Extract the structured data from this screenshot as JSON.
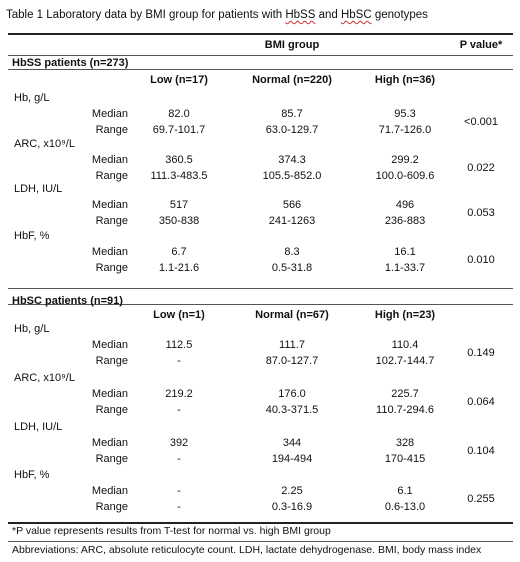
{
  "caption": {
    "prefix": "Table 1 Laboratory data by BMI group for patients with ",
    "hbss": "HbSS",
    "and": " and ",
    "hbsc": "HbSC",
    "suffix": " genotypes"
  },
  "header": {
    "bmi_group": "BMI group",
    "p_value": "P value*"
  },
  "sections": [
    {
      "title": "HbSS patients (n=273)",
      "groups": [
        "Low (n=17)",
        "Normal (n=220)",
        "High (n=36)"
      ],
      "measures": [
        {
          "label": "Hb, g/L",
          "median": [
            "82.0",
            "85.7",
            "95.3"
          ],
          "range": [
            "69.7-101.7",
            "63.0-129.7",
            "71.7-126.0"
          ],
          "p": "<0.001"
        },
        {
          "label": "ARC, x10⁹/L",
          "median": [
            "360.5",
            "374.3",
            "299.2"
          ],
          "range": [
            "111.3-483.5",
            "105.5-852.0",
            "100.0-609.6"
          ],
          "p": "0.022"
        },
        {
          "label": "LDH, IU/L",
          "median": [
            "517",
            "566",
            "496"
          ],
          "range": [
            "350-838",
            "241-1263",
            "236-883"
          ],
          "p": "0.053"
        },
        {
          "label": "HbF, %",
          "median": [
            "6.7",
            "8.3",
            "16.1"
          ],
          "range": [
            "1.1-21.6",
            "0.5-31.8",
            "1.1-33.7"
          ],
          "p": "0.010"
        }
      ]
    },
    {
      "title": "HbSC patients (n=91)",
      "groups": [
        "Low (n=1)",
        "Normal (n=67)",
        "High (n=23)"
      ],
      "measures": [
        {
          "label": "Hb, g/L",
          "median": [
            "112.5",
            "111.7",
            "110.4"
          ],
          "range": [
            "-",
            "87.0-127.7",
            "102.7-144.7"
          ],
          "p": "0.149"
        },
        {
          "label": "ARC, x10⁹/L",
          "median": [
            "219.2",
            "176.0",
            "225.7"
          ],
          "range": [
            "-",
            "40.3-371.5",
            "110.7-294.6"
          ],
          "p": "0.064"
        },
        {
          "label": "LDH, IU/L",
          "median": [
            "392",
            "344",
            "328"
          ],
          "range": [
            "-",
            "194-494",
            "170-415"
          ],
          "p": "0.104"
        },
        {
          "label": "HbF, %",
          "median": [
            "-",
            "2.25",
            "6.1"
          ],
          "range": [
            "-",
            "0.3-16.9",
            "0.6-13.0"
          ],
          "p": "0.255"
        }
      ]
    }
  ],
  "stat_labels": {
    "median": "Median",
    "range": "Range"
  },
  "footnotes": [
    "*P value represents results from T-test for normal vs. high BMI group",
    "Abbreviations: ARC, absolute reticulocyte count. LDH, lactate dehydrogenase. BMI, body mass index"
  ]
}
